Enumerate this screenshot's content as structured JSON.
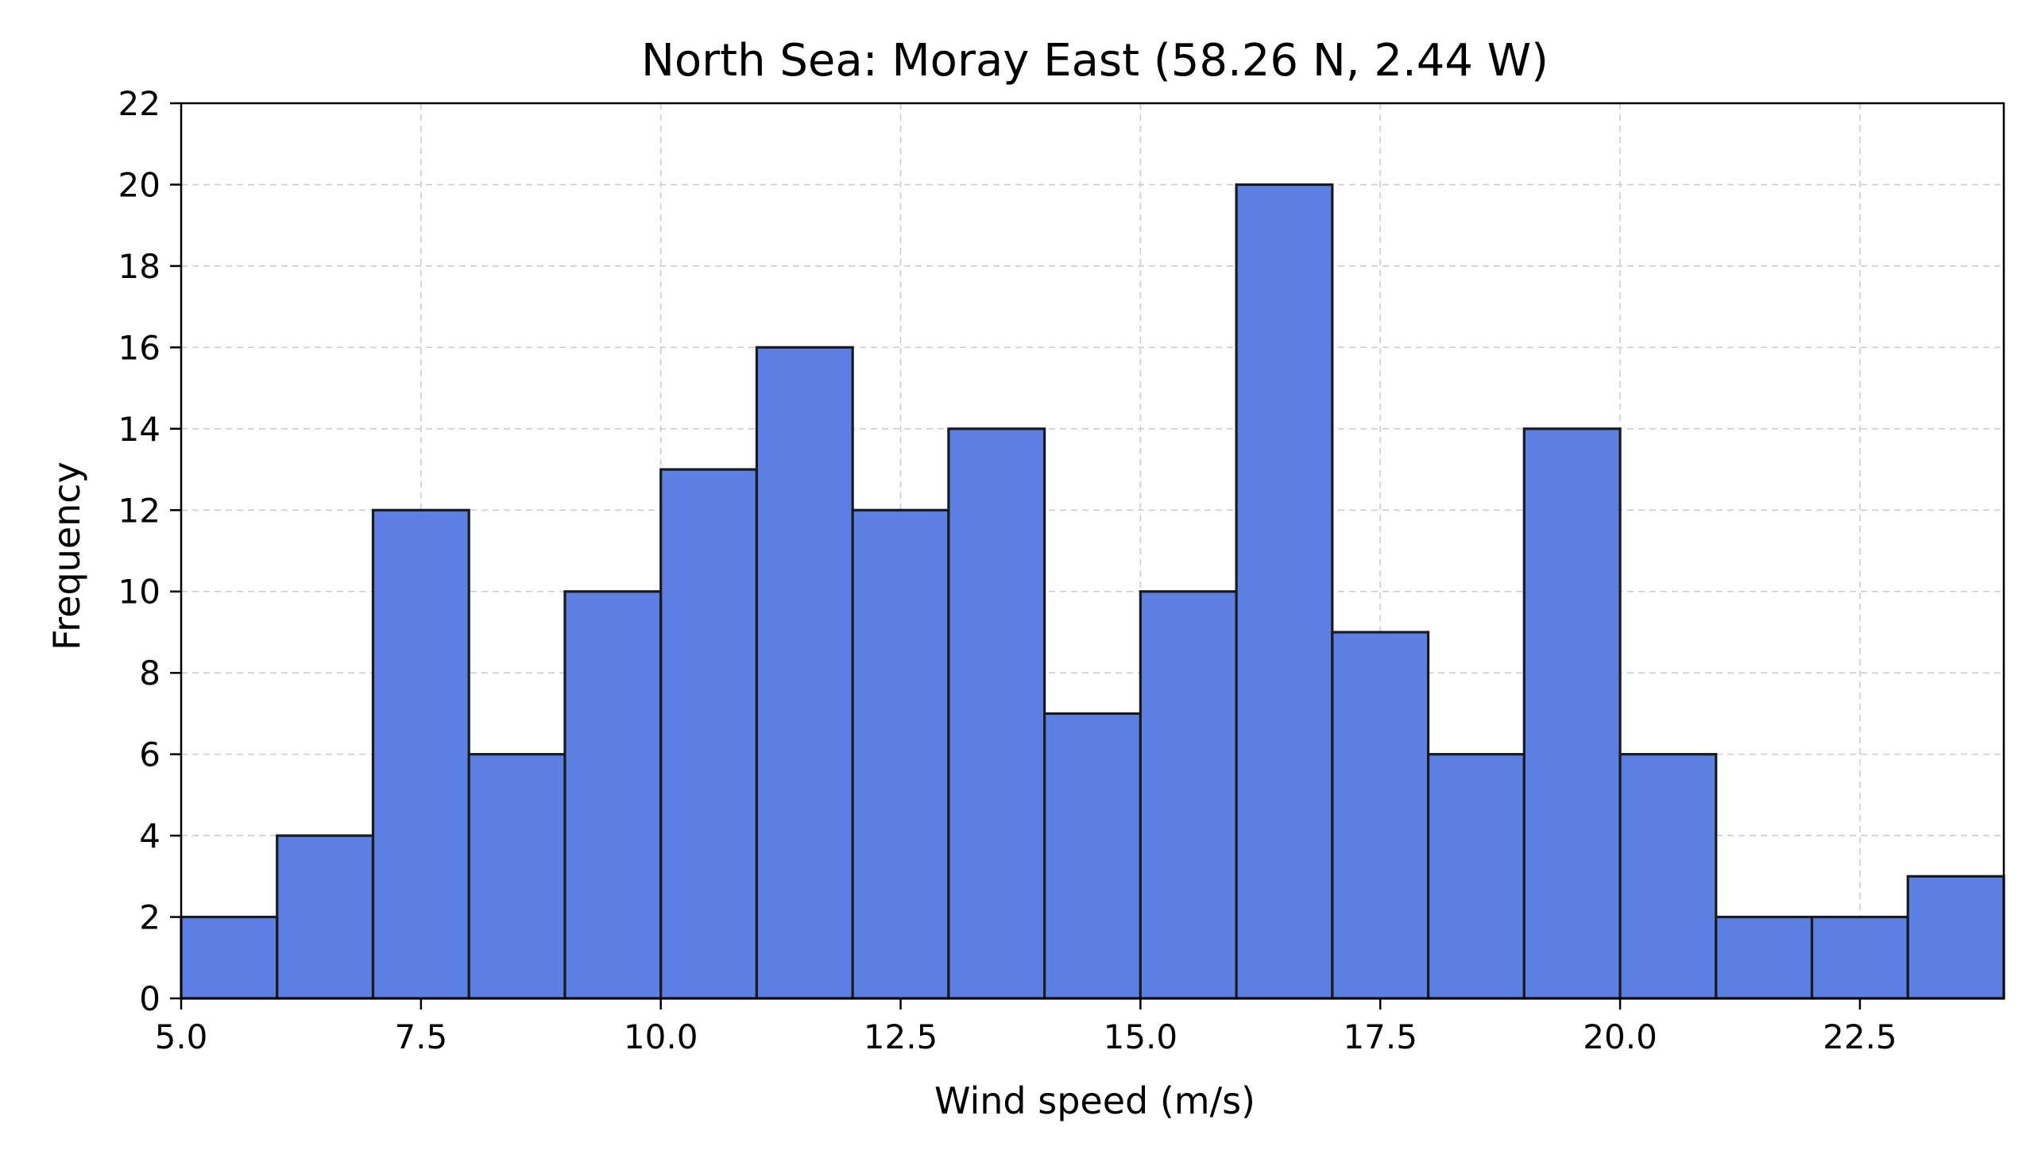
{
  "chart_data": {
    "type": "bar",
    "subtype": "histogram",
    "title": "North Sea: Moray East (58.26 N, 2.44 W)",
    "xlabel": "Wind speed (m/s)",
    "ylabel": "Frequency",
    "xlim": [
      5.0,
      24.0
    ],
    "ylim": [
      0,
      22
    ],
    "bin_edges": [
      5,
      6,
      7,
      8,
      9,
      10,
      11,
      12,
      13,
      14,
      15,
      16,
      17,
      18,
      19,
      20,
      21,
      22,
      23,
      24
    ],
    "values": [
      2,
      4,
      12,
      6,
      10,
      13,
      16,
      12,
      14,
      7,
      10,
      20,
      9,
      6,
      14,
      6,
      2,
      2,
      3
    ],
    "x_ticks": [
      5.0,
      7.5,
      10.0,
      12.5,
      15.0,
      17.5,
      20.0,
      22.5
    ],
    "x_tick_labels": [
      "5.0",
      "7.5",
      "10.0",
      "12.5",
      "15.0",
      "17.5",
      "20.0",
      "22.5"
    ],
    "y_ticks": [
      0,
      2,
      4,
      6,
      8,
      10,
      12,
      14,
      16,
      18,
      20,
      22
    ],
    "y_tick_labels": [
      "0",
      "2",
      "4",
      "6",
      "8",
      "10",
      "12",
      "14",
      "16",
      "18",
      "20",
      "22"
    ],
    "grid": true,
    "legend": "none",
    "colors": {
      "bar_fill": "#5b7fe3",
      "bar_edge": "#1a1a1a"
    }
  }
}
